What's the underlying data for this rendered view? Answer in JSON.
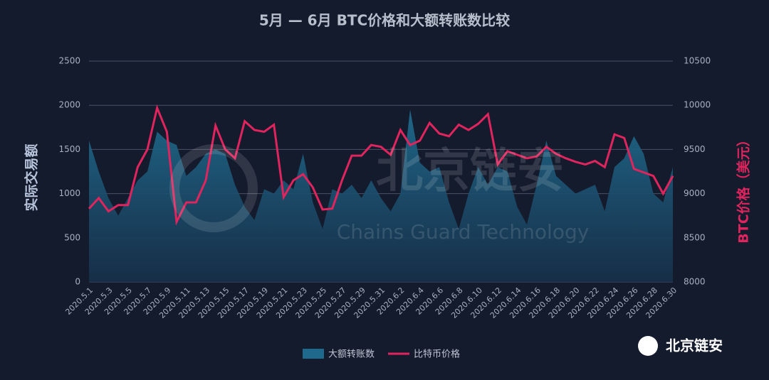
{
  "chart_data": {
    "type": "area-line",
    "title": "5月 — 6月 BTC价格和大额转账数比较",
    "y_label": "实际交易额",
    "y2_label": "BTC价格（美元）",
    "watermark": {
      "brand": "北京链安",
      "english": "Chains Guard Technology"
    },
    "badge": "北京链安",
    "categories": [
      "2020.5.1",
      null,
      "2020.5.3",
      null,
      "2020.5.5",
      null,
      "2020.5.7",
      null,
      "2020.5.9",
      null,
      "2020.5.11",
      null,
      "2020.5.13",
      null,
      "2020.5.15",
      null,
      "2020.5.17",
      null,
      "2020.5.19",
      null,
      "2020.5.21",
      null,
      "2020.5.23",
      null,
      "2020.5.25",
      null,
      "2020.5.27",
      null,
      "2020.5.29",
      null,
      "2020.5.31",
      null,
      "2020.6.2",
      null,
      "2020.6.4",
      null,
      "2020.6.6",
      null,
      "2020.6.8",
      null,
      "2020.6.10",
      null,
      "2020.6.12",
      null,
      "2020.6.14",
      null,
      "2020.6.16",
      null,
      "2020.6.18",
      null,
      "2020.6.20",
      null,
      "2020.6.22",
      null,
      "2020.6.24",
      null,
      "2020.6.26",
      null,
      "2020.6.28",
      null,
      "2020.6.30"
    ],
    "series": [
      {
        "name": "大额转账数",
        "color": "#1f6a8c",
        "values": [
          1600,
          1250,
          950,
          750,
          950,
          1150,
          1250,
          1700,
          1600,
          1550,
          1200,
          1300,
          1450,
          1500,
          1450,
          1100,
          850,
          700,
          1050,
          1000,
          1150,
          1050,
          1450,
          900,
          600,
          1050,
          1000,
          1100,
          950,
          1150,
          950,
          800,
          1000,
          1950,
          1350,
          1250,
          1300,
          900,
          600,
          1000,
          1300,
          1100,
          1300,
          1250,
          850,
          650,
          1100,
          1600,
          1200,
          1100,
          1000,
          1050,
          1100,
          800,
          1300,
          1400,
          1650,
          1450,
          1000,
          900,
          1300
        ]
      },
      {
        "name": "比特币价格",
        "color": "#e0245e",
        "axis": "y2",
        "values": [
          8830,
          8950,
          8800,
          8870,
          8870,
          9300,
          9500,
          9970,
          9700,
          8680,
          8900,
          8900,
          9150,
          9770,
          9500,
          9400,
          9820,
          9720,
          9700,
          9780,
          8960,
          9150,
          9220,
          9070,
          8820,
          8830,
          9150,
          9430,
          9430,
          9550,
          9530,
          9440,
          9720,
          9550,
          9600,
          9800,
          9680,
          9650,
          9780,
          9720,
          9790,
          9900,
          9330,
          9480,
          9440,
          9400,
          9420,
          9530,
          9450,
          9400,
          9360,
          9330,
          9370,
          9300,
          9670,
          9630,
          9280,
          9240,
          9200,
          9000,
          9200
        ]
      }
    ],
    "ylim": [
      0,
      2500
    ],
    "yticks": [
      0,
      500,
      1000,
      1500,
      2000,
      2500
    ],
    "y2lim": [
      8000,
      10500
    ],
    "y2ticks": [
      8000,
      8500,
      9000,
      9500,
      10000,
      10500
    ],
    "grid": true
  }
}
